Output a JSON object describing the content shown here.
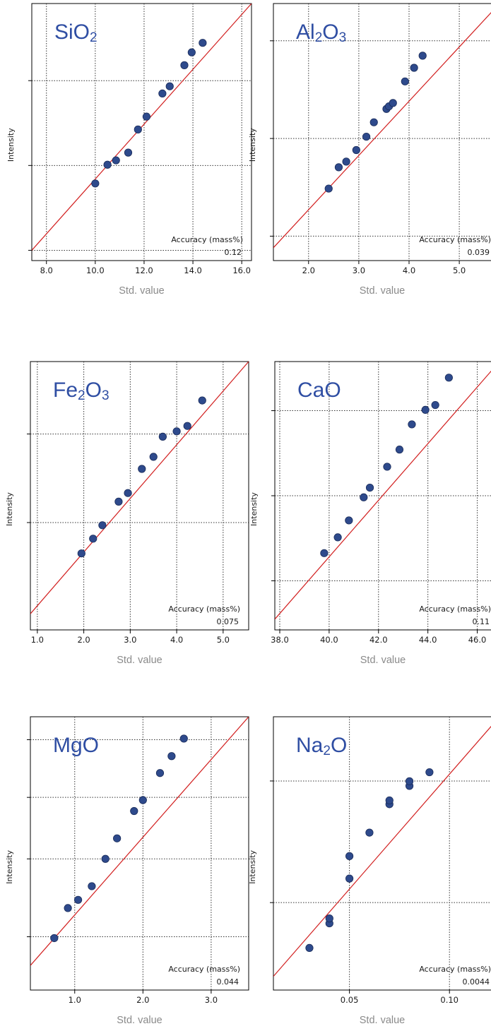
{
  "chart_data": [
    {
      "type": "scatter",
      "title": "SiO2",
      "title_parts": [
        {
          "t": "SiO"
        },
        {
          "t": "2",
          "sub": true
        }
      ],
      "xlabel": "Std. value",
      "ylabel": "Intensity",
      "xlim": [
        7.4,
        16.4
      ],
      "xticks": [
        8.0,
        10.0,
        12.0,
        14.0,
        16.0
      ],
      "xtick_labels": [
        "8.0",
        "10.0",
        "12.0",
        "14.0",
        "16.0"
      ],
      "ylim": [
        0,
        1
      ],
      "y_gridlines": [
        0.04,
        0.37,
        0.7
      ],
      "grid": true,
      "fit_line": {
        "x": [
          7.4,
          16.4
        ],
        "y": [
          0.04,
          1.0
        ]
      },
      "accuracy_label": "Accuracy (mass%)",
      "accuracy_value": "0.12",
      "points": [
        {
          "x": 10.0,
          "y": 0.3
        },
        {
          "x": 10.5,
          "y": 0.373
        },
        {
          "x": 10.85,
          "y": 0.39
        },
        {
          "x": 11.35,
          "y": 0.42
        },
        {
          "x": 11.75,
          "y": 0.51
        },
        {
          "x": 12.1,
          "y": 0.56
        },
        {
          "x": 12.75,
          "y": 0.65
        },
        {
          "x": 13.05,
          "y": 0.678
        },
        {
          "x": 13.65,
          "y": 0.76
        },
        {
          "x": 13.95,
          "y": 0.81
        },
        {
          "x": 14.4,
          "y": 0.847
        }
      ]
    },
    {
      "type": "scatter",
      "title": "Al2O3",
      "title_parts": [
        {
          "t": "Al"
        },
        {
          "t": "2",
          "sub": true
        },
        {
          "t": "O"
        },
        {
          "t": "3",
          "sub": true
        }
      ],
      "xlabel": "Std. value",
      "ylabel": "Intensity",
      "xlim": [
        1.3,
        5.8
      ],
      "xticks": [
        2.0,
        3.0,
        4.0,
        5.0
      ],
      "xtick_labels": [
        "2.0",
        "3.0",
        "4.0",
        "5.0"
      ],
      "ylim": [
        0,
        1
      ],
      "y_gridlines": [
        0.095,
        0.475,
        0.855
      ],
      "grid": true,
      "fit_line": {
        "x": [
          1.3,
          5.8
        ],
        "y": [
          0.05,
          1.0
        ]
      },
      "accuracy_label": "Accuracy (mass%)",
      "accuracy_value": "0.039",
      "points": [
        {
          "x": 2.4,
          "y": 0.28
        },
        {
          "x": 2.6,
          "y": 0.363
        },
        {
          "x": 2.75,
          "y": 0.385
        },
        {
          "x": 2.95,
          "y": 0.43
        },
        {
          "x": 3.15,
          "y": 0.482
        },
        {
          "x": 3.3,
          "y": 0.538
        },
        {
          "x": 3.55,
          "y": 0.59
        },
        {
          "x": 3.6,
          "y": 0.6
        },
        {
          "x": 3.68,
          "y": 0.613
        },
        {
          "x": 3.92,
          "y": 0.697
        },
        {
          "x": 4.1,
          "y": 0.75
        },
        {
          "x": 4.27,
          "y": 0.797
        }
      ]
    },
    {
      "type": "scatter",
      "title": "Fe2O3",
      "title_parts": [
        {
          "t": "Fe"
        },
        {
          "t": "2",
          "sub": true
        },
        {
          "t": "O"
        },
        {
          "t": "3",
          "sub": true
        }
      ],
      "xlabel": "Std. value",
      "ylabel": "Intensity",
      "xlim": [
        0.85,
        5.55
      ],
      "xticks": [
        1.0,
        2.0,
        3.0,
        4.0,
        5.0
      ],
      "xtick_labels": [
        "1.0",
        "2.0",
        "3.0",
        "4.0",
        "5.0"
      ],
      "ylim": [
        0,
        1
      ],
      "y_gridlines": [
        0.4,
        0.73
      ],
      "grid": true,
      "fit_line": {
        "x": [
          0.85,
          5.55
        ],
        "y": [
          0.06,
          1.0
        ]
      },
      "accuracy_label": "Accuracy (mass%)",
      "accuracy_value": "0.075",
      "points": [
        {
          "x": 1.95,
          "y": 0.285
        },
        {
          "x": 2.2,
          "y": 0.34
        },
        {
          "x": 2.4,
          "y": 0.39
        },
        {
          "x": 2.75,
          "y": 0.478
        },
        {
          "x": 2.95,
          "y": 0.51
        },
        {
          "x": 3.25,
          "y": 0.6
        },
        {
          "x": 3.5,
          "y": 0.645
        },
        {
          "x": 3.7,
          "y": 0.72
        },
        {
          "x": 4.0,
          "y": 0.74
        },
        {
          "x": 4.23,
          "y": 0.76
        },
        {
          "x": 4.55,
          "y": 0.855
        }
      ]
    },
    {
      "type": "scatter",
      "title": "CaO",
      "title_parts": [
        {
          "t": "CaO"
        }
      ],
      "xlabel": "Std. value",
      "ylabel": "Intensity",
      "xlim": [
        37.8,
        46.9
      ],
      "xticks": [
        38.0,
        40.0,
        42.0,
        44.0,
        46.0
      ],
      "xtick_labels": [
        "38.0",
        "40.0",
        "42.0",
        "44.0",
        "46.0"
      ],
      "ylim": [
        0,
        1
      ],
      "y_gridlines": [
        0.183,
        0.5,
        0.817
      ],
      "grid": true,
      "fit_line": {
        "x": [
          37.8,
          46.9
        ],
        "y": [
          0.04,
          1.0
        ]
      },
      "accuracy_label": "Accuracy (mass%)",
      "accuracy_value": "0.11",
      "points": [
        {
          "x": 39.8,
          "y": 0.286
        },
        {
          "x": 40.35,
          "y": 0.345
        },
        {
          "x": 40.8,
          "y": 0.408
        },
        {
          "x": 41.4,
          "y": 0.494
        },
        {
          "x": 41.65,
          "y": 0.53
        },
        {
          "x": 42.35,
          "y": 0.608
        },
        {
          "x": 42.85,
          "y": 0.672
        },
        {
          "x": 43.35,
          "y": 0.766
        },
        {
          "x": 43.9,
          "y": 0.82
        },
        {
          "x": 44.3,
          "y": 0.838
        },
        {
          "x": 44.85,
          "y": 0.94
        }
      ]
    },
    {
      "type": "scatter",
      "title": "MgO",
      "title_parts": [
        {
          "t": "MgO"
        }
      ],
      "xlabel": "Std. value",
      "ylabel": "Intensity",
      "xlim": [
        0.35,
        3.55
      ],
      "xticks": [
        1.0,
        2.0,
        3.0
      ],
      "xtick_labels": [
        "1.0",
        "2.0",
        "3.0"
      ],
      "ylim": [
        0,
        1
      ],
      "y_gridlines": [
        0.195,
        0.48,
        0.705,
        0.916
      ],
      "grid": true,
      "fit_line": {
        "x": [
          0.35,
          3.55
        ],
        "y": [
          0.09,
          1.0
        ]
      },
      "accuracy_label": "Accuracy (mass%)",
      "accuracy_value": "0.044",
      "points": [
        {
          "x": 0.7,
          "y": 0.19
        },
        {
          "x": 0.9,
          "y": 0.3
        },
        {
          "x": 1.05,
          "y": 0.33
        },
        {
          "x": 1.25,
          "y": 0.38
        },
        {
          "x": 1.45,
          "y": 0.48
        },
        {
          "x": 1.62,
          "y": 0.555
        },
        {
          "x": 1.87,
          "y": 0.655
        },
        {
          "x": 2.0,
          "y": 0.695
        },
        {
          "x": 2.25,
          "y": 0.794
        },
        {
          "x": 2.42,
          "y": 0.856
        },
        {
          "x": 2.6,
          "y": 0.92
        }
      ]
    },
    {
      "type": "scatter",
      "title": "Na2O",
      "title_parts": [
        {
          "t": "Na"
        },
        {
          "t": "2",
          "sub": true
        },
        {
          "t": "O"
        }
      ],
      "xlabel": "Std. value",
      "ylabel": "Intensity",
      "xlim": [
        0.012,
        0.125
      ],
      "xticks": [
        0.05,
        0.1
      ],
      "xtick_labels": [
        "0.05",
        "0.10"
      ],
      "ylim": [
        0,
        1
      ],
      "y_gridlines": [
        0.32,
        0.765
      ],
      "grid": true,
      "fit_line": {
        "x": [
          0.012,
          0.125
        ],
        "y": [
          0.05,
          1.0
        ]
      },
      "accuracy_label": "Accuracy (mass%)",
      "accuracy_value": "0.0044",
      "points": [
        {
          "x": 0.03,
          "y": 0.154
        },
        {
          "x": 0.04,
          "y": 0.244
        },
        {
          "x": 0.04,
          "y": 0.262
        },
        {
          "x": 0.05,
          "y": 0.408
        },
        {
          "x": 0.05,
          "y": 0.49
        },
        {
          "x": 0.06,
          "y": 0.576
        },
        {
          "x": 0.07,
          "y": 0.68
        },
        {
          "x": 0.07,
          "y": 0.694
        },
        {
          "x": 0.08,
          "y": 0.747
        },
        {
          "x": 0.08,
          "y": 0.764
        },
        {
          "x": 0.09,
          "y": 0.797
        }
      ]
    }
  ]
}
